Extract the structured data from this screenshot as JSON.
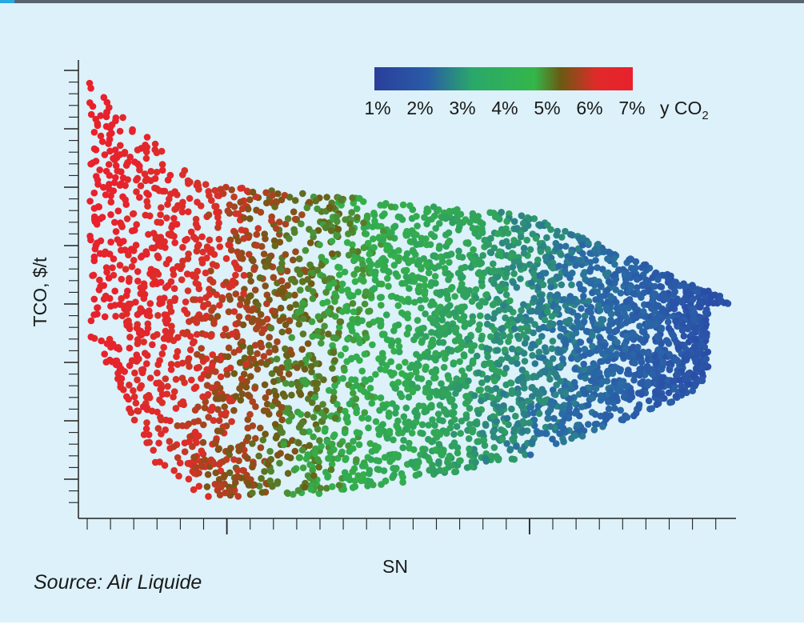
{
  "source": "Source: Air Liquide",
  "chart_data": {
    "type": "scatter",
    "xlabel": "SN",
    "ylabel": "TCO, $/t",
    "x_tick_labels_shown": false,
    "y_tick_labels_shown": false,
    "colorbar": {
      "label_prefix": "y CO",
      "label_subscript": "2",
      "tick_labels": [
        "1%",
        "2%",
        "3%",
        "4%",
        "5%",
        "6%",
        "7%"
      ],
      "range": [
        1,
        7
      ],
      "colors": [
        "#2a3f9a",
        "#2aa84a",
        "#6b5a12",
        "#e8212c"
      ]
    },
    "description_values": {
      "color_variable": "y CO2 (%)",
      "point_color_low": "#2a55a8",
      "point_color_mid": "#2fb04a",
      "point_color_high": "#e8202a"
    }
  }
}
